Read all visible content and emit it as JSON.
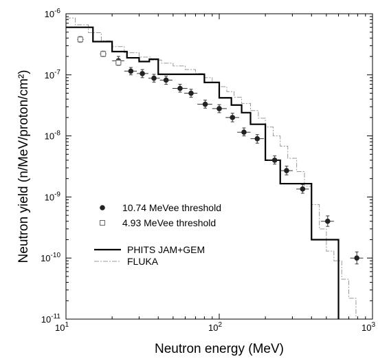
{
  "chart_data": {
    "type": "scatter",
    "xlabel": "Neutron energy (MeV)",
    "ylabel": "Neutron yield (n/MeV/proton/cm²)",
    "xscale": "log",
    "yscale": "log",
    "xlim": [
      10,
      1000
    ],
    "ylim": [
      1e-11,
      1e-06
    ],
    "x_ticks": [
      {
        "value": 10,
        "base": "10",
        "exp": "1"
      },
      {
        "value": 100,
        "base": "10",
        "exp": "2"
      },
      {
        "value": 1000,
        "base": "10",
        "exp": "3"
      }
    ],
    "y_ticks": [
      {
        "value": 1e-11,
        "base": "10",
        "exp": "-11"
      },
      {
        "value": 1e-10,
        "base": "10",
        "exp": "-10"
      },
      {
        "value": 1e-09,
        "base": "10",
        "exp": "-9"
      },
      {
        "value": 1e-08,
        "base": "10",
        "exp": "-8"
      },
      {
        "value": 1e-07,
        "base": "10",
        "exp": "-7"
      },
      {
        "value": 1e-06,
        "base": "10",
        "exp": "-6"
      }
    ],
    "legend_position": "middle-left",
    "grid": false,
    "series": [
      {
        "name": "10.74 MeVee threshold",
        "style": "filled-circle",
        "color": "#222222",
        "points": [
          {
            "x": 22,
            "y": 1.7e-07,
            "xerr": [
              20,
              24
            ],
            "yerr": [
              1.45e-07,
              2e-07
            ]
          },
          {
            "x": 26.5,
            "y": 1.15e-07,
            "xerr": [
              24,
              29
            ],
            "yerr": [
              1e-07,
              1.32e-07
            ]
          },
          {
            "x": 31.5,
            "y": 1.05e-07,
            "xerr": [
              29,
              34.5
            ],
            "yerr": [
              9e-08,
              1.22e-07
            ]
          },
          {
            "x": 37.5,
            "y": 8.8e-08,
            "xerr": [
              34.5,
              41
            ],
            "yerr": [
              7.6e-08,
              1.02e-07
            ]
          },
          {
            "x": 45,
            "y": 8.2e-08,
            "xerr": [
              41,
              49.5
            ],
            "yerr": [
              7e-08,
              9.5e-08
            ]
          },
          {
            "x": 55.5,
            "y": 6e-08,
            "xerr": [
              49.5,
              62
            ],
            "yerr": [
              5.2e-08,
              7e-08
            ]
          },
          {
            "x": 65.5,
            "y": 5e-08,
            "xerr": [
              59,
              72
            ],
            "yerr": [
              4.3e-08,
              5.8e-08
            ]
          },
          {
            "x": 81,
            "y": 3.3e-08,
            "xerr": [
              72,
              90
            ],
            "yerr": [
              2.85e-08,
              3.85e-08
            ]
          },
          {
            "x": 100,
            "y": 2.8e-08,
            "xerr": [
              90,
              112
            ],
            "yerr": [
              2.4e-08,
              3.25e-08
            ]
          },
          {
            "x": 122,
            "y": 2e-08,
            "xerr": [
              110,
              135
            ],
            "yerr": [
              1.7e-08,
              2.35e-08
            ]
          },
          {
            "x": 145,
            "y": 1.15e-08,
            "xerr": [
              131,
              160
            ],
            "yerr": [
              1e-08,
              1.35e-08
            ]
          },
          {
            "x": 177,
            "y": 9e-09,
            "xerr": [
              160,
              196
            ],
            "yerr": [
              7.6e-09,
              1.05e-08
            ]
          },
          {
            "x": 230,
            "y": 4e-09,
            "xerr": [
              208,
              254
            ],
            "yerr": [
              3.45e-09,
              4.7e-09
            ]
          },
          {
            "x": 275,
            "y": 2.7e-09,
            "xerr": [
              250,
              302
            ],
            "yerr": [
              2.3e-09,
              3.2e-09
            ]
          },
          {
            "x": 350,
            "y": 1.35e-09,
            "xerr": [
              318,
              385
            ],
            "yerr": [
              1.15e-09,
              1.6e-09
            ]
          },
          {
            "x": 510,
            "y": 4e-10,
            "xerr": [
              460,
              560
            ],
            "yerr": [
              3.3e-10,
              4.9e-10
            ]
          },
          {
            "x": 790,
            "y": 1e-10,
            "xerr": [
              715,
              870
            ],
            "yerr": [
              8e-11,
              1.26e-10
            ]
          }
        ]
      },
      {
        "name": "4.93 MeVee threshold",
        "style": "open-square",
        "color": "#666666",
        "points": [
          {
            "x": 12.4,
            "y": 3.8e-07,
            "xerr": [
              11.8,
              13.1
            ],
            "yerr": [
              3.4e-07,
              4.25e-07
            ]
          },
          {
            "x": 17.5,
            "y": 2.2e-07,
            "xerr": [
              16.6,
              18.4
            ],
            "yerr": [
              1.98e-07,
              2.45e-07
            ]
          },
          {
            "x": 22,
            "y": 1.58e-07,
            "xerr": [
              21,
              23
            ],
            "yerr": [
              1.42e-07,
              1.75e-07
            ]
          }
        ]
      },
      {
        "name": "PHITS JAM+GEM",
        "style": "step",
        "color": "#000000",
        "bins": [
          {
            "x0": 10,
            "x1": 15,
            "y": 6e-07
          },
          {
            "x0": 15,
            "x1": 20,
            "y": 3.5e-07
          },
          {
            "x0": 20,
            "x1": 25,
            "y": 2.4e-07
          },
          {
            "x0": 25,
            "x1": 30,
            "y": 1.9e-07
          },
          {
            "x0": 30,
            "x1": 35,
            "y": 1.65e-07
          },
          {
            "x0": 35,
            "x1": 40,
            "y": 1.8e-07
          },
          {
            "x0": 40,
            "x1": 80,
            "y": 1.02e-07
          },
          {
            "x0": 80,
            "x1": 100,
            "y": 7.5e-08
          },
          {
            "x0": 100,
            "x1": 120,
            "y": 4.2e-08
          },
          {
            "x0": 120,
            "x1": 140,
            "y": 3.2e-08
          },
          {
            "x0": 140,
            "x1": 160,
            "y": 2.4e-08
          },
          {
            "x0": 160,
            "x1": 200,
            "y": 1.55e-08
          },
          {
            "x0": 200,
            "x1": 250,
            "y": 4e-09
          },
          {
            "x0": 250,
            "x1": 400,
            "y": 1.65e-09
          },
          {
            "x0": 400,
            "x1": 600,
            "y": 2e-10
          }
        ],
        "drop_to": 1e-11
      },
      {
        "name": "FLUKA",
        "style": "dash-dot-step",
        "color": "#999999",
        "bins": [
          {
            "x0": 10,
            "x1": 11.5,
            "y": 8.5e-07
          },
          {
            "x0": 11.5,
            "x1": 14,
            "y": 6.6e-07
          },
          {
            "x0": 14,
            "x1": 17,
            "y": 4.9e-07
          },
          {
            "x0": 17,
            "x1": 20,
            "y": 3.6e-07
          },
          {
            "x0": 20,
            "x1": 24,
            "y": 2.9e-07
          },
          {
            "x0": 24,
            "x1": 30,
            "y": 2.3e-07
          },
          {
            "x0": 30,
            "x1": 36,
            "y": 1.95e-07
          },
          {
            "x0": 36,
            "x1": 42,
            "y": 1.75e-07
          },
          {
            "x0": 42,
            "x1": 50,
            "y": 1.55e-07
          },
          {
            "x0": 50,
            "x1": 60,
            "y": 1.4e-07
          },
          {
            "x0": 60,
            "x1": 70,
            "y": 1.22e-07
          },
          {
            "x0": 70,
            "x1": 80,
            "y": 1.05e-07
          },
          {
            "x0": 80,
            "x1": 90,
            "y": 9e-08
          },
          {
            "x0": 90,
            "x1": 100,
            "y": 7.6e-08
          },
          {
            "x0": 100,
            "x1": 112,
            "y": 6.4e-08
          },
          {
            "x0": 112,
            "x1": 125,
            "y": 5.3e-08
          },
          {
            "x0": 125,
            "x1": 140,
            "y": 4.3e-08
          },
          {
            "x0": 140,
            "x1": 160,
            "y": 3.4e-08
          },
          {
            "x0": 160,
            "x1": 180,
            "y": 2.6e-08
          },
          {
            "x0": 180,
            "x1": 200,
            "y": 1.95e-08
          },
          {
            "x0": 200,
            "x1": 225,
            "y": 1.4e-08
          },
          {
            "x0": 225,
            "x1": 250,
            "y": 1e-08
          },
          {
            "x0": 250,
            "x1": 280,
            "y": 6.8e-09
          },
          {
            "x0": 280,
            "x1": 320,
            "y": 4.3e-09
          },
          {
            "x0": 320,
            "x1": 360,
            "y": 2.6e-09
          },
          {
            "x0": 360,
            "x1": 400,
            "y": 1.5e-09
          },
          {
            "x0": 400,
            "x1": 450,
            "y": 7.5e-10
          },
          {
            "x0": 450,
            "x1": 500,
            "y": 3e-10
          },
          {
            "x0": 500,
            "x1": 560,
            "y": 1.3e-10
          },
          {
            "x0": 560,
            "x1": 630,
            "y": 9e-11
          },
          {
            "x0": 630,
            "x1": 700,
            "y": 4.5e-11
          },
          {
            "x0": 700,
            "x1": 780,
            "y": 2.2e-11
          }
        ],
        "drop_to": 1e-11
      }
    ]
  }
}
